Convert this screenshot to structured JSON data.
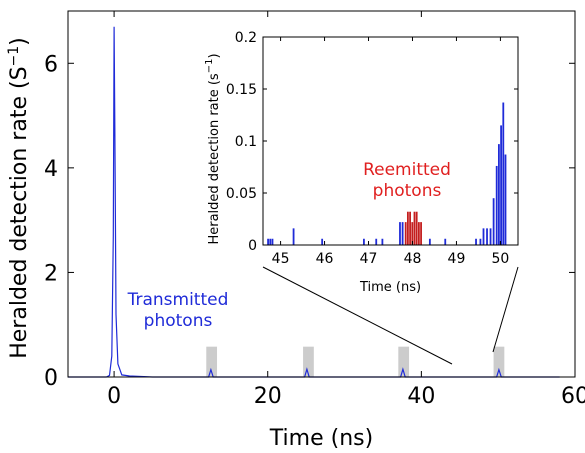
{
  "chart_data": [
    {
      "type": "line",
      "xlabel": "Time (ns)",
      "ylabel": "Heralded detection rate (S",
      "ylabel_superscript": "−1",
      "ylabel_suffix": ")",
      "xlim": [
        -6,
        60
      ],
      "ylim": [
        0,
        7
      ],
      "xticks": [
        0,
        20,
        40,
        60
      ],
      "yticks": [
        0,
        2,
        4,
        6
      ],
      "series": [
        {
          "color": "#1f2bd8",
          "x": [
            -6,
            -1,
            -0.6,
            -0.3,
            -0.1,
            0,
            0.1,
            0.25,
            0.5,
            1.0,
            2,
            5,
            10,
            12.3,
            12.6,
            12.9,
            15,
            20,
            24.8,
            25.1,
            25.4,
            28,
            35,
            37.3,
            37.6,
            37.9,
            40,
            45,
            49.8,
            50.1,
            50.4,
            55,
            58
          ],
          "y": [
            0,
            0,
            0.03,
            0.4,
            2.7,
            6.7,
            4.6,
            1.2,
            0.25,
            0.04,
            0.02,
            0,
            0,
            0,
            0.14,
            0,
            0,
            0,
            0,
            0.15,
            0,
            0,
            0,
            0,
            0.15,
            0,
            0,
            0,
            0,
            0.14,
            0,
            0,
            0
          ]
        }
      ],
      "annotations": [
        {
          "text_line1": "Transmitted",
          "text_line2": "photons",
          "color": "#1f2bd8"
        }
      ],
      "highlight_windows": [
        {
          "x_start": 12.0,
          "x_end": 13.4,
          "y_top": 0.58,
          "color": "#cccccc"
        },
        {
          "x_start": 24.6,
          "x_end": 26.0,
          "y_top": 0.58,
          "color": "#cccccc"
        },
        {
          "x_start": 37.0,
          "x_end": 38.4,
          "y_top": 0.58,
          "color": "#cccccc"
        },
        {
          "x_start": 49.4,
          "x_end": 50.8,
          "y_top": 0.58,
          "color": "#cccccc"
        }
      ]
    },
    {
      "type": "bar",
      "xlabel": "Time (ns)",
      "ylabel": "Heralded detection rate (s",
      "ylabel_superscript": "−1",
      "ylabel_suffix": ")",
      "xlim": [
        44.6,
        50.4
      ],
      "ylim": [
        0,
        0.2
      ],
      "xticks": [
        45,
        46,
        47,
        48,
        49,
        50
      ],
      "yticks": [
        0,
        0.05,
        0.1,
        0.15,
        0.2
      ],
      "ytick_labels": [
        "0",
        "0.05",
        "0.1",
        "0.15",
        "0.2"
      ],
      "bin_width": 0.05,
      "series": [
        {
          "color": "#1f2bd8",
          "x": [
            44.72,
            44.77,
            44.82,
            45.3,
            45.95,
            46.9,
            47.18,
            47.32,
            47.72,
            47.78,
            48.4,
            48.75,
            49.45,
            49.55,
            49.62,
            49.7,
            49.78,
            49.85,
            49.92,
            49.97,
            50.02,
            50.07,
            50.12
          ],
          "y": [
            0.006,
            0.006,
            0.006,
            0.016,
            0.006,
            0.006,
            0.006,
            0.006,
            0.022,
            0.022,
            0.006,
            0.006,
            0.006,
            0.006,
            0.016,
            0.016,
            0.016,
            0.045,
            0.076,
            0.097,
            0.115,
            0.137,
            0.087
          ]
        },
        {
          "color": "#c41e1e",
          "x": [
            47.85,
            47.9,
            47.95,
            48.0,
            48.05,
            48.1,
            48.15,
            48.2
          ],
          "y": [
            0.022,
            0.032,
            0.032,
            0.022,
            0.032,
            0.032,
            0.022,
            0.022
          ]
        }
      ],
      "annotations": [
        {
          "text_line1": "Reemitted",
          "text_line2": "photons",
          "color": "#e02020"
        }
      ]
    }
  ]
}
